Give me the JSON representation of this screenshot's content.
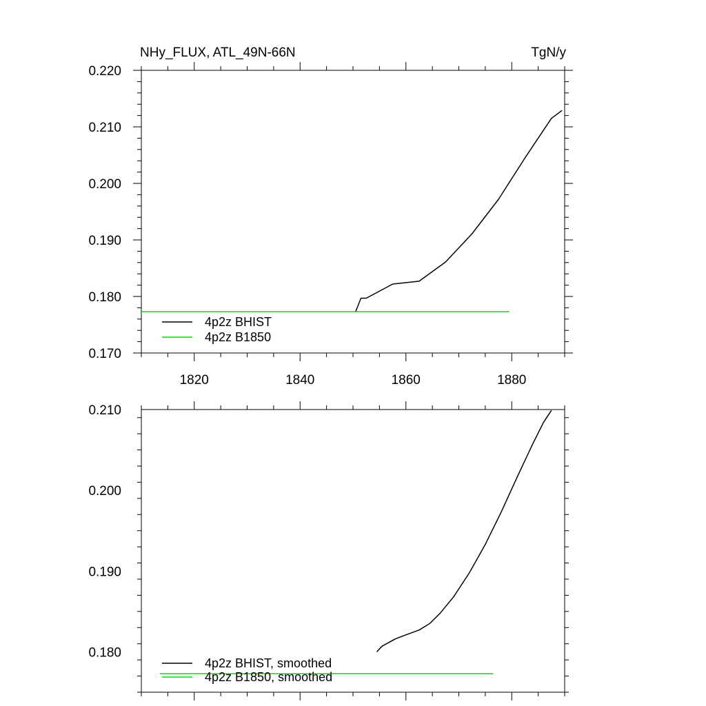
{
  "chart_data": [
    {
      "type": "line",
      "title": "NHy_FLUX, ATL_49N-66N",
      "unit_label": "TgN/y",
      "xlim": [
        1810,
        1890
      ],
      "ylim": [
        0.17,
        0.22
      ],
      "x_ticks": [
        1820,
        1840,
        1860,
        1880
      ],
      "x_tick_labels": [
        "1820",
        "1840",
        "1860",
        "1880"
      ],
      "y_ticks": [
        0.17,
        0.18,
        0.19,
        0.2,
        0.21,
        0.22
      ],
      "y_tick_labels": [
        "0.170",
        "0.180",
        "0.190",
        "0.200",
        "0.210",
        "0.220"
      ],
      "legend_position": "bottom-left",
      "series": [
        {
          "name": "4p2z BHIST",
          "color": "#000000",
          "points": [
            [
              1850.5,
              0.1773
            ],
            [
              1851.5,
              0.1797
            ],
            [
              1852.5,
              0.1797
            ],
            [
              1857.5,
              0.1822
            ],
            [
              1862.5,
              0.1827
            ],
            [
              1867.5,
              0.1861
            ],
            [
              1872.5,
              0.1911
            ],
            [
              1877.5,
              0.1972
            ],
            [
              1882.5,
              0.2045
            ],
            [
              1887.5,
              0.2115
            ],
            [
              1889.5,
              0.2129
            ]
          ]
        },
        {
          "name": "4p2z B1850",
          "color": "#00dd00",
          "points": [
            [
              1810.0,
              0.1773
            ],
            [
              1879.5,
              0.1773
            ]
          ]
        }
      ]
    },
    {
      "type": "line",
      "title": "",
      "xlim": [
        1810,
        1890
      ],
      "ylim": [
        0.175,
        0.21
      ],
      "x_ticks": [
        1820,
        1840,
        1860,
        1880
      ],
      "x_tick_labels": [],
      "y_ticks": [
        0.18,
        0.19,
        0.2,
        0.21
      ],
      "y_tick_labels": [
        "0.180",
        "0.190",
        "0.200",
        "0.210"
      ],
      "legend_position": "bottom-left",
      "series": [
        {
          "name": "4p2z BHIST, smoothed",
          "color": "#000000",
          "points": [
            [
              1854.5,
              0.18
            ],
            [
              1855.5,
              0.1807
            ],
            [
              1858.0,
              0.1816
            ],
            [
              1860.0,
              0.1821
            ],
            [
              1862.5,
              0.1827
            ],
            [
              1864.5,
              0.1835
            ],
            [
              1866.5,
              0.1848
            ],
            [
              1869.0,
              0.1868
            ],
            [
              1872.0,
              0.1898
            ],
            [
              1875.0,
              0.1933
            ],
            [
              1878.0,
              0.1973
            ],
            [
              1881.0,
              0.2016
            ],
            [
              1884.0,
              0.2058
            ],
            [
              1886.0,
              0.2084
            ],
            [
              1887.5,
              0.2099
            ]
          ]
        },
        {
          "name": "4p2z B1850, smoothed",
          "color": "#00dd00",
          "points": [
            [
              1813.5,
              0.1773
            ],
            [
              1876.5,
              0.1773
            ]
          ]
        }
      ]
    }
  ]
}
